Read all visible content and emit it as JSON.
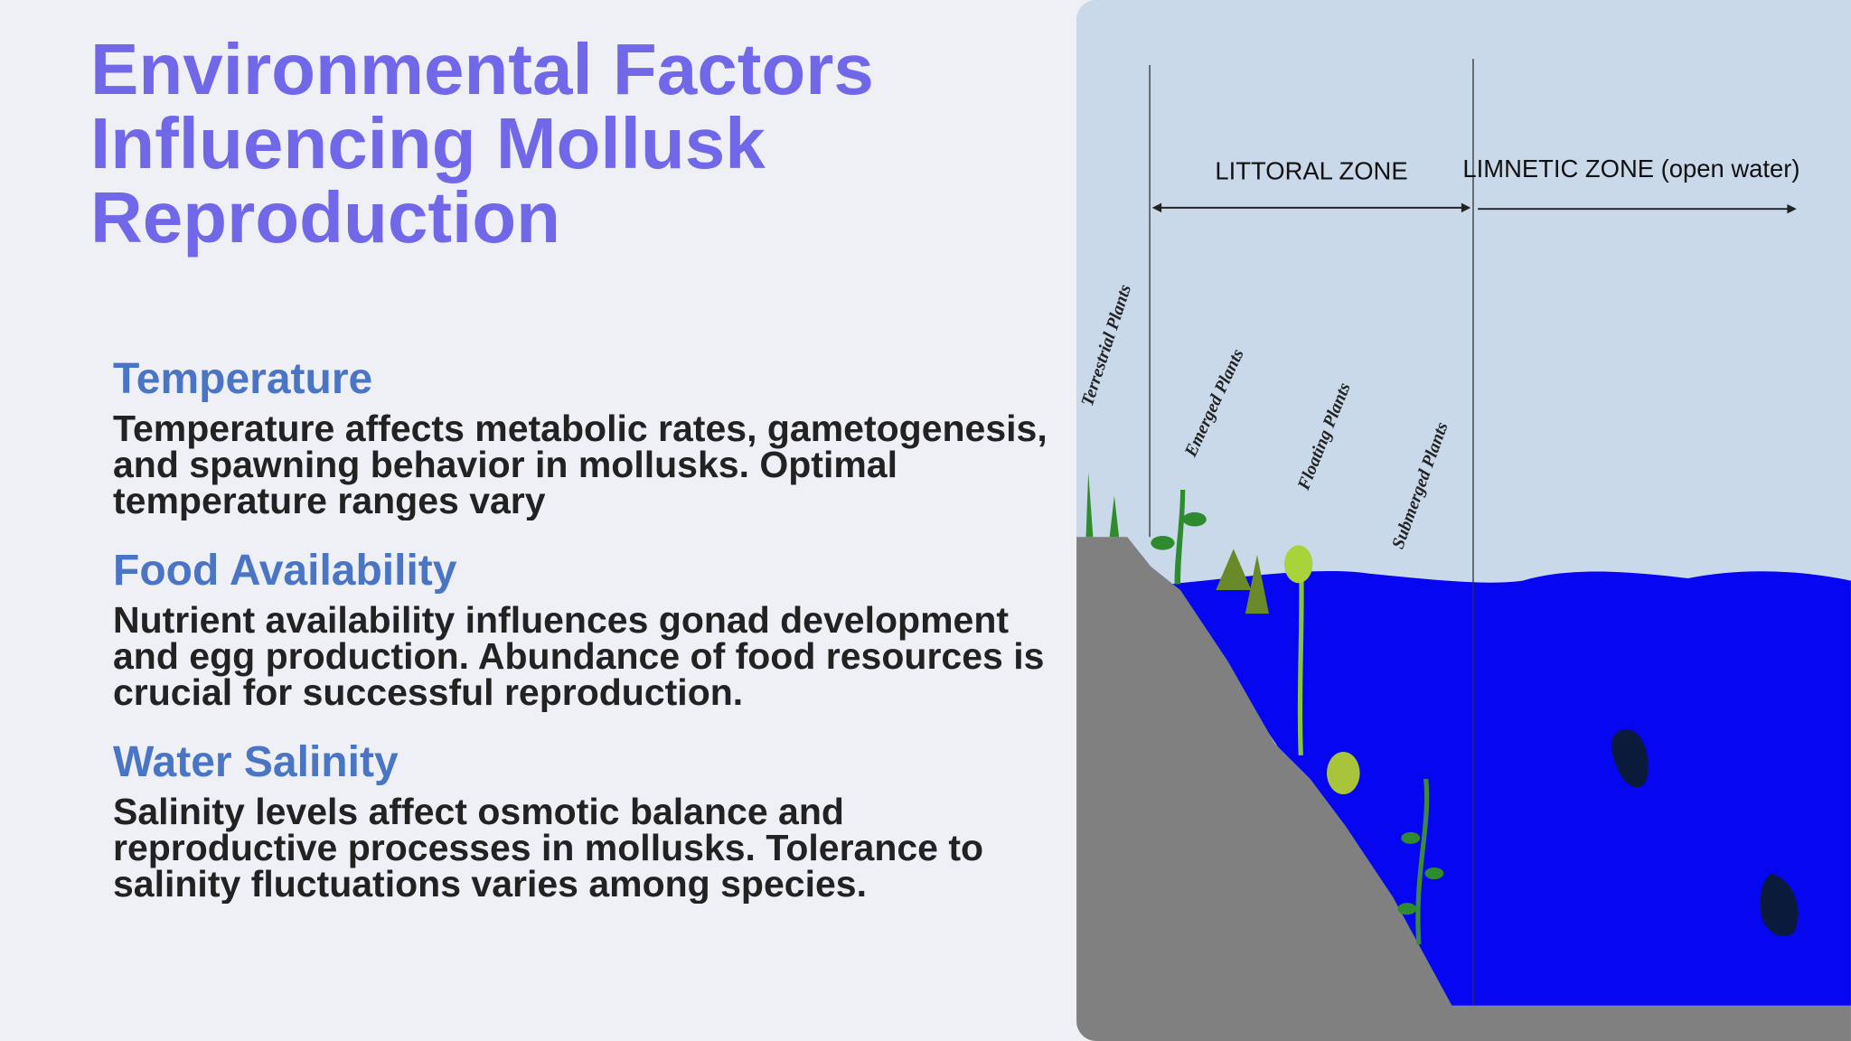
{
  "title": "Environmental Factors Influencing Mollusk Reproduction",
  "sections": [
    {
      "heading": "Temperature",
      "body": "Temperature affects metabolic rates, gametogenesis, and spawning behavior in mollusks. Optimal temperature ranges vary"
    },
    {
      "heading": "Food Availability",
      "body": "Nutrient availability influences gonad development and egg production. Abundance of food resources is crucial for successful reproduction."
    },
    {
      "heading": "Water Salinity",
      "body": "Salinity levels affect osmotic balance and reproductive processes in mollusks. Tolerance to salinity fluctuations varies among species."
    }
  ],
  "diagram": {
    "zones": [
      "LITTORAL ZONE",
      "LIMNETIC ZONE (open water)"
    ],
    "plants": [
      "Terrestrial Plants",
      "Emerged Plants",
      "Floating Plants",
      "Submerged Plants"
    ]
  }
}
